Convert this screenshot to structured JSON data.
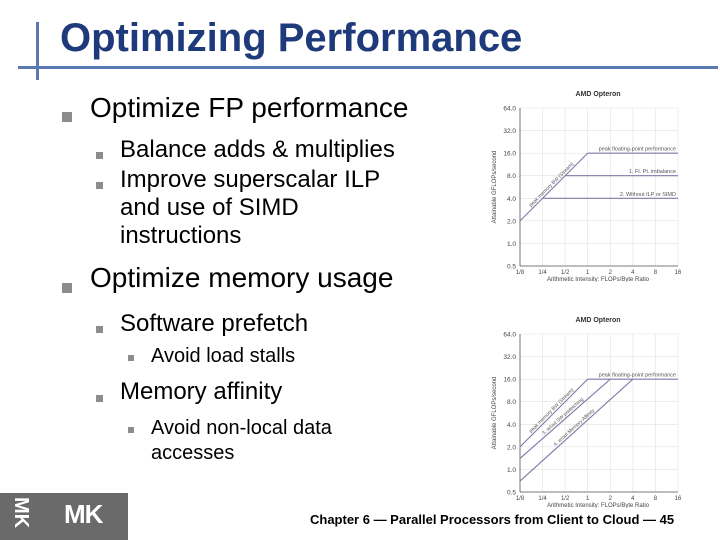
{
  "title": "Optimizing Performance",
  "bullets": {
    "fp": "Optimize FP performance",
    "fp_sub1": "Balance adds & multiplies",
    "fp_sub2_a": "Improve superscalar ILP",
    "fp_sub2_b": "and use of SIMD",
    "fp_sub2_c": "instructions",
    "mem": "Optimize memory usage",
    "mem_sub1": "Software prefetch",
    "mem_sub1_a": "Avoid load stalls",
    "mem_sub2": "Memory affinity",
    "mem_sub2_a": "Avoid non-local data",
    "mem_sub2_b": "accesses"
  },
  "chart_data": [
    {
      "type": "line",
      "title": "AMD Opteron",
      "xlabel": "Arithmetic Intensity: FLOPs/Byte Ratio",
      "ylabel": "Attainable GFLOPs/second",
      "x_ticks": [
        "1/8",
        "1/4",
        "1/2",
        "1",
        "2",
        "4",
        "8",
        "16"
      ],
      "y_ticks": [
        "0.5",
        "1.0",
        "2.0",
        "4.0",
        "8.0",
        "16.0",
        "32.0",
        "64.0"
      ],
      "log_scale": true,
      "series": [
        {
          "name": "peak floating-point performance",
          "points": [
            [
              1,
              16
            ],
            [
              16,
              16
            ]
          ]
        },
        {
          "name": "1. Fl. Pt. imbalance",
          "points": [
            [
              0.5,
              8
            ],
            [
              16,
              8
            ]
          ]
        },
        {
          "name": "2. Without ILP or SIMD",
          "points": [
            [
              0.25,
              4
            ],
            [
              16,
              4
            ]
          ]
        },
        {
          "name": "peak memory BW (Stream)",
          "points": [
            [
              0.125,
              2
            ],
            [
              1,
              16
            ]
          ]
        }
      ],
      "annotations": [
        "peak memory BW (Stream)",
        "peak floating-point performance",
        "1. Fl. Pt. imbalance",
        "2. Without ILP or SIMD"
      ]
    },
    {
      "type": "line",
      "title": "AMD Opteron",
      "xlabel": "Arithmetic Intensity: FLOPs/Byte Ratio",
      "ylabel": "Attainable GFLOPs/second",
      "x_ticks": [
        "1/8",
        "1/4",
        "1/2",
        "1",
        "2",
        "4",
        "8",
        "16"
      ],
      "y_ticks": [
        "0.5",
        "1.0",
        "2.0",
        "4.0",
        "8.0",
        "16.0",
        "32.0",
        "64.0"
      ],
      "log_scale": true,
      "series": [
        {
          "name": "peak floating-point performance",
          "points": [
            [
              1,
              16
            ],
            [
              16,
              16
            ]
          ]
        },
        {
          "name": "peak memory BW (Stream)",
          "points": [
            [
              0.125,
              2
            ],
            [
              1,
              16
            ]
          ]
        },
        {
          "name": "3. w/out SW prefetching",
          "points": [
            [
              0.125,
              1.4
            ],
            [
              2,
              16
            ]
          ]
        },
        {
          "name": "4. w/out Memory Affinity",
          "points": [
            [
              0.125,
              0.7
            ],
            [
              4,
              16
            ]
          ]
        }
      ],
      "annotations": [
        "peak memory BW (Stream)",
        "peak floating-point performance",
        "3. w/out SW prefetching",
        "4. w/out Memory Affinity"
      ]
    }
  ],
  "footer": "Chapter 6 — Parallel Processors from Client to Cloud — 45",
  "logo_text": "MK"
}
